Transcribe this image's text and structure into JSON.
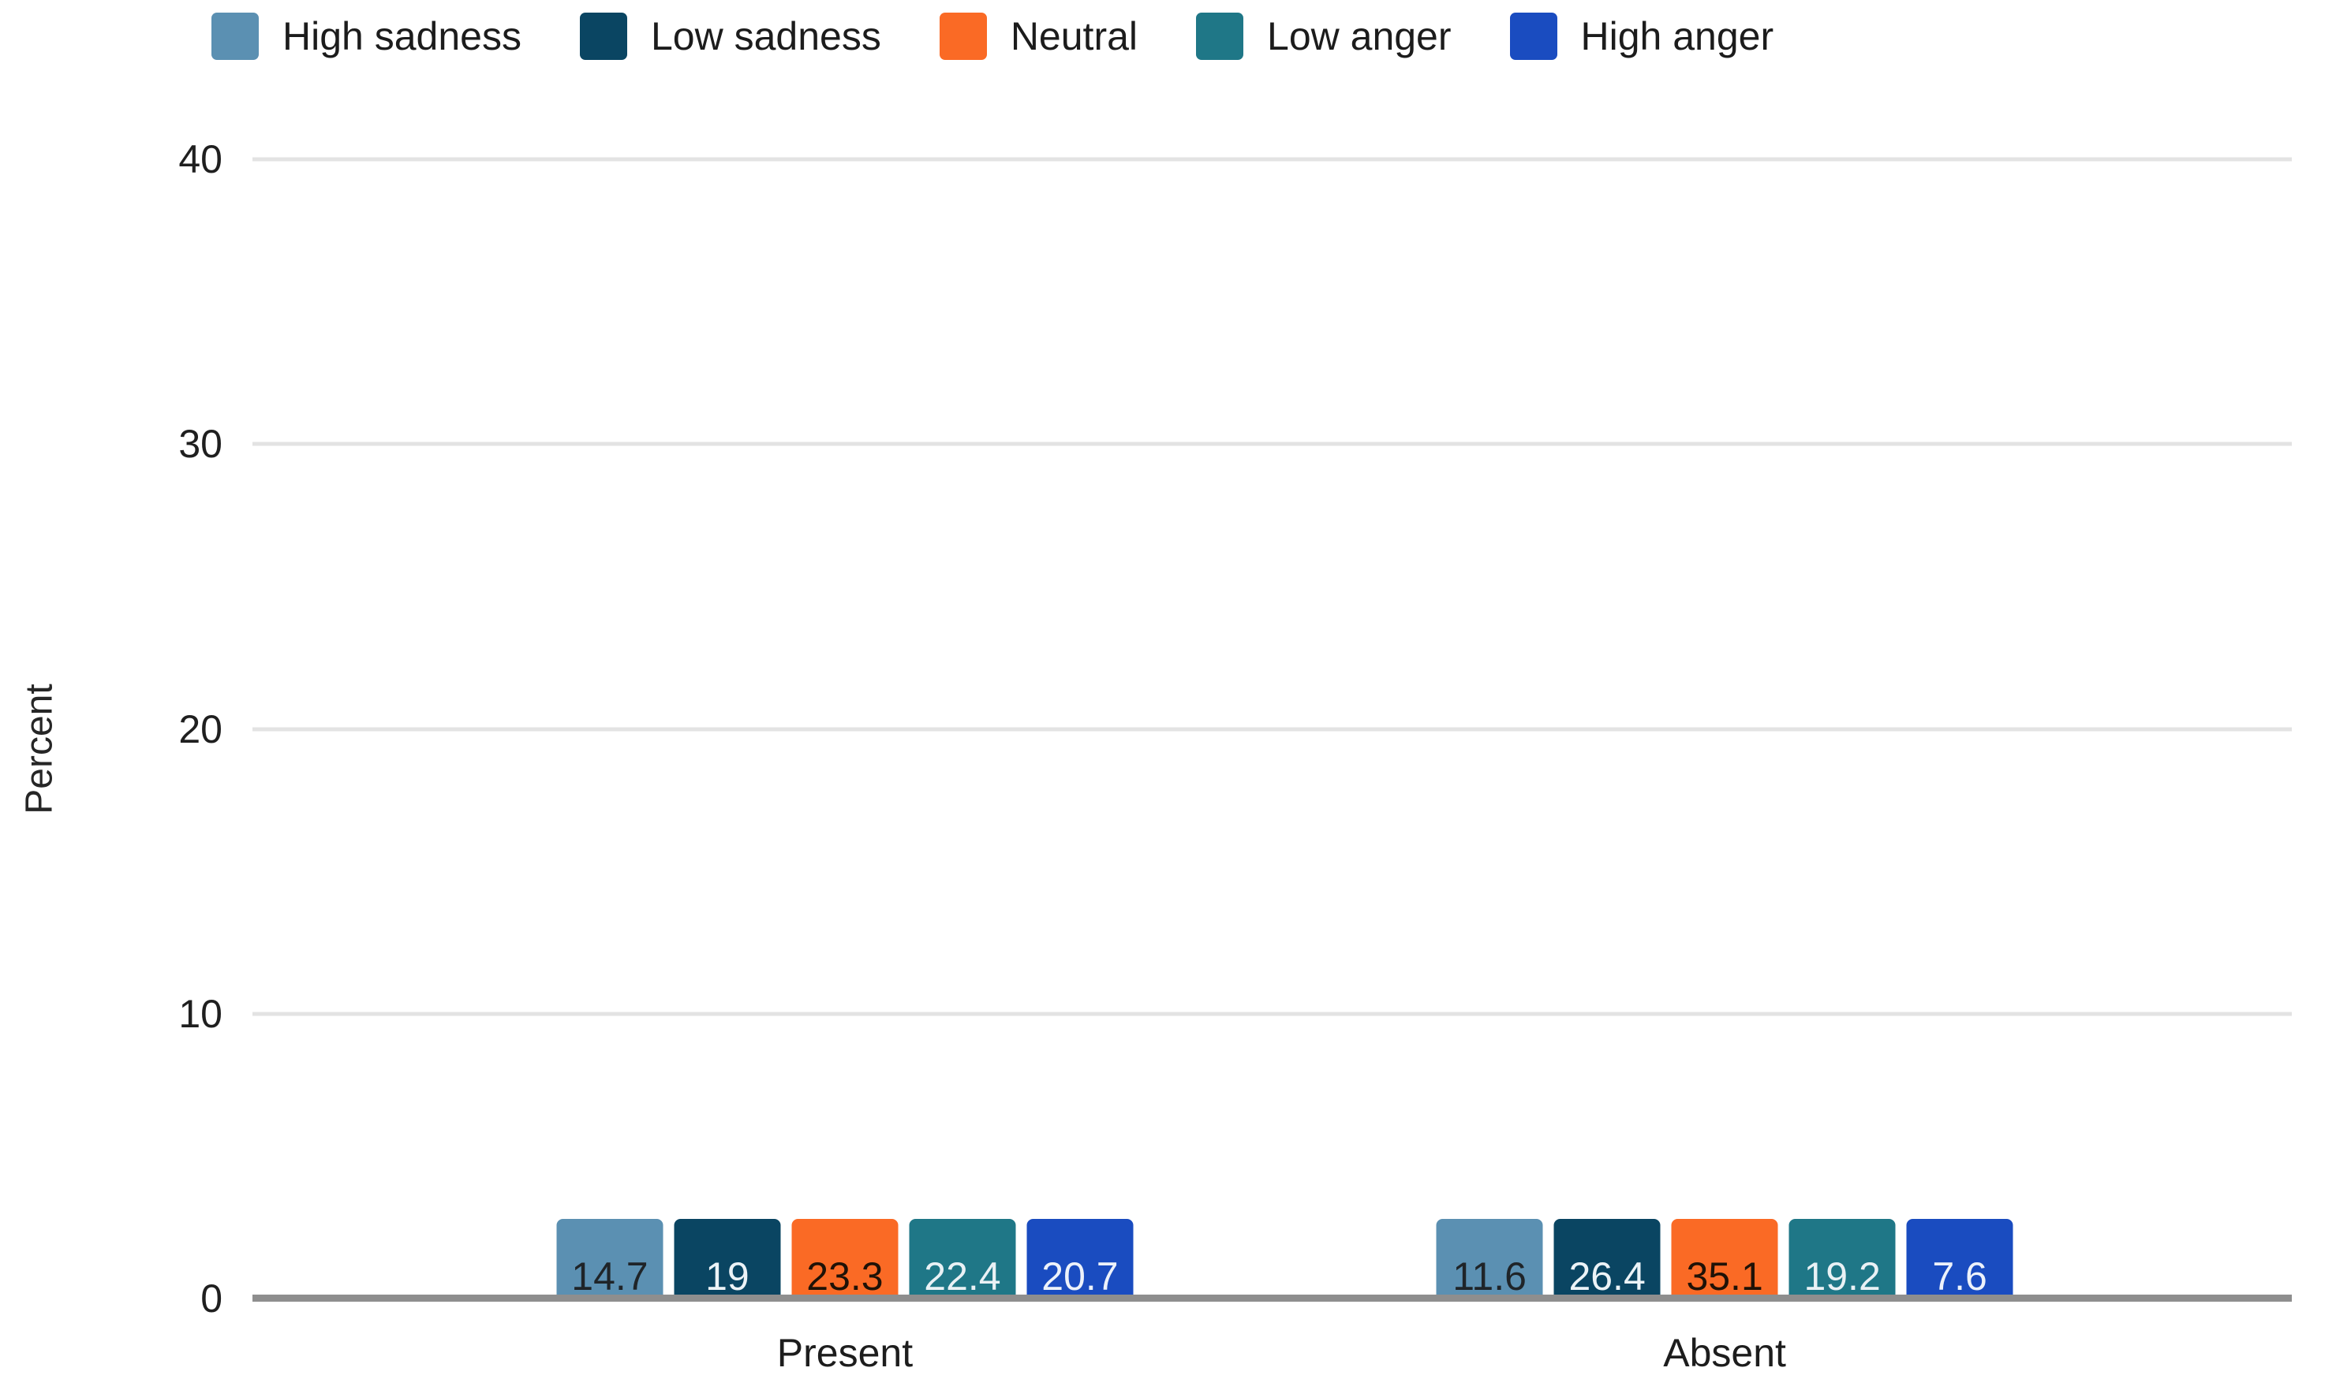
{
  "chart_data": {
    "type": "bar",
    "title": "",
    "xlabel": "",
    "ylabel": "Percent",
    "categories": [
      "Present",
      "Absent"
    ],
    "series": [
      {
        "name": "High sadness",
        "color": "#5b90b2",
        "label_color": "#1f2428",
        "values": [
          14.7,
          11.6
        ]
      },
      {
        "name": "Low sadness",
        "color": "#0a4562",
        "label_color": "#ecf3f7",
        "values": [
          19,
          26.4
        ]
      },
      {
        "name": "Neutral",
        "color": "#fa6a25",
        "label_color": "#1f1207",
        "values": [
          23.3,
          35.1
        ]
      },
      {
        "name": "Low anger",
        "color": "#1f7787",
        "label_color": "#e9f1f5",
        "values": [
          22.4,
          19.2
        ]
      },
      {
        "name": "High anger",
        "color": "#1a4cc0",
        "label_color": "#edf2fa",
        "values": [
          20.7,
          7.6
        ]
      }
    ],
    "ylim": [
      0,
      40
    ],
    "yticks": [
      0,
      10,
      20,
      30,
      40
    ],
    "grid": true,
    "legend_position": "top"
  },
  "colors": {
    "background": "#ffffff",
    "gridline": "#e3e3e3",
    "axis_line": "#8e8e8e",
    "tick_label": "#1f1f1f",
    "legend_label": "#1c1c1c"
  }
}
